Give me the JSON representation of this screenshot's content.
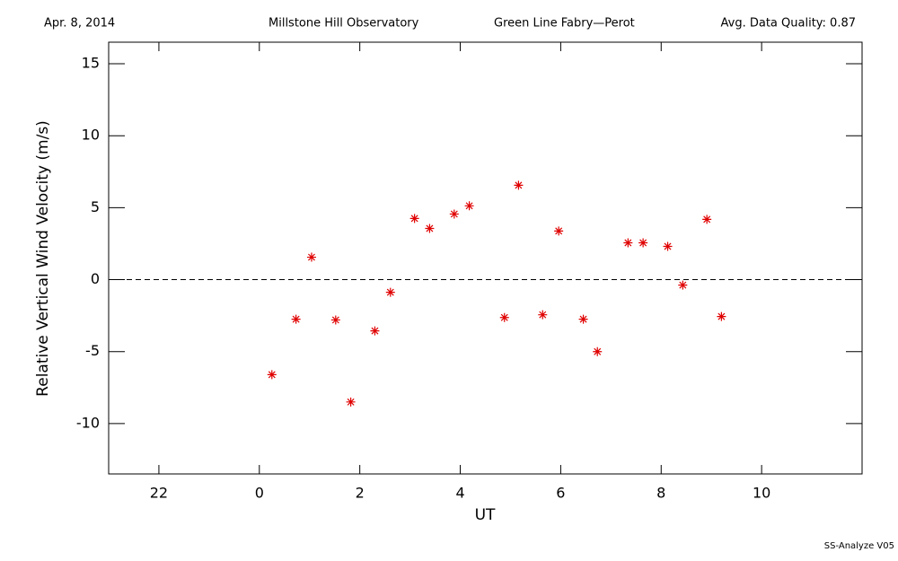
{
  "chart_data": {
    "type": "scatter",
    "date": "Apr. 8, 2014",
    "observatory": "Millstone Hill Observatory",
    "instrument": "Green Line Fabry—Perot",
    "quality": "Avg. Data Quality: 0.87",
    "footer": "SS-Analyze V05",
    "x_label": "UT",
    "y_label": "Relative Vertical Wind Velocity (m/s)",
    "xlim": [
      -3,
      12
    ],
    "xticks": [
      {
        "value": -2,
        "label": "22"
      },
      0,
      2,
      4,
      6,
      8,
      10
    ],
    "ylim": [
      -13.5,
      16.5
    ],
    "yticks": [
      -10,
      -5,
      0,
      5,
      10,
      15
    ],
    "reference_line": 0,
    "series": [
      {
        "color": "#e00000",
        "x": [
          0.25,
          0.73,
          1.04,
          1.52,
          1.82,
          2.3,
          2.61,
          3.09,
          3.39,
          3.88,
          4.18,
          4.88,
          5.16,
          5.64,
          5.96,
          6.45,
          6.73,
          7.34,
          7.64,
          8.13,
          8.43,
          8.91,
          9.2
        ],
        "values": [
          -6.6,
          -2.75,
          1.56,
          -2.8,
          -8.5,
          -3.56,
          -0.88,
          4.25,
          3.56,
          4.56,
          5.13,
          -2.63,
          6.56,
          -2.44,
          3.38,
          -2.75,
          -5.0,
          2.56,
          2.56,
          2.31,
          -0.38,
          4.19,
          -2.56
        ]
      }
    ]
  }
}
